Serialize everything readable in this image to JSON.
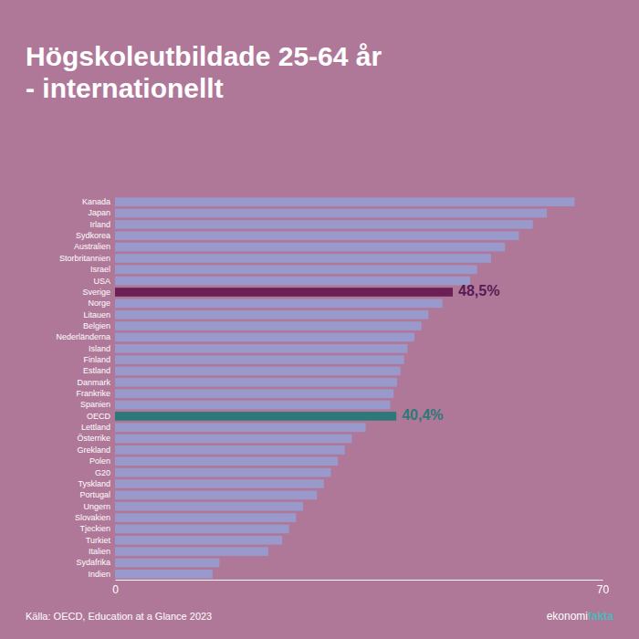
{
  "chart_data": {
    "type": "bar",
    "orientation": "horizontal",
    "title": "Högskoleutbildade 25-64 år\n- internationellt",
    "source": "Källa: OECD, Education at a Glance 2023",
    "logo": [
      {
        "text": "ekonomi",
        "color": "#ffffff"
      },
      {
        "text": "fakta",
        "color": "#4db8b8"
      }
    ],
    "background_color": "#b07898",
    "title_color": "#ffffff",
    "source_color": "#ffffff",
    "categories": [
      "Kanada",
      "Japan",
      "Irland",
      "Sydkorea",
      "Australien",
      "Storbritannien",
      "Israel",
      "USA",
      "Sverige",
      "Norge",
      "Litauen",
      "Belgien",
      "Nederländerna",
      "Island",
      "Finland",
      "Estland",
      "Danmark",
      "Frankrike",
      "Spanien",
      "OECD",
      "Lettland",
      "Österrike",
      "Grekland",
      "Polen",
      "G20",
      "Tyskland",
      "Portugal",
      "Ungern",
      "Slovakien",
      "Tjeckien",
      "Turkiet",
      "Italien",
      "Sydafrika",
      "Indien"
    ],
    "values": [
      66,
      62,
      60,
      58,
      56,
      54,
      52,
      51,
      48.5,
      47,
      45,
      44,
      43,
      42,
      41.5,
      41,
      40.5,
      40,
      39.5,
      40.4,
      36,
      34,
      33,
      32,
      31,
      30,
      29,
      27,
      26,
      25,
      24,
      22,
      15,
      14
    ],
    "colors": [
      "#9999cc",
      "#9999cc",
      "#9999cc",
      "#9999cc",
      "#9999cc",
      "#9999cc",
      "#9999cc",
      "#9999cc",
      "#6b2055",
      "#9999cc",
      "#9999cc",
      "#9999cc",
      "#9999cc",
      "#9999cc",
      "#9999cc",
      "#9999cc",
      "#9999cc",
      "#9999cc",
      "#9999cc",
      "#2d7878",
      "#9999cc",
      "#9999cc",
      "#9999cc",
      "#9999cc",
      "#9999cc",
      "#9999cc",
      "#9999cc",
      "#9999cc",
      "#9999cc",
      "#9999cc",
      "#9999cc",
      "#9999cc",
      "#9999cc",
      "#9999cc"
    ],
    "annotations": [
      {
        "text": "48,5%",
        "category": "Sverige",
        "color": "#5a1a55"
      },
      {
        "text": "40,4%",
        "category": "OECD",
        "color": "#2d7878"
      }
    ],
    "xlim": [
      0,
      70
    ],
    "xticks": [
      0,
      70
    ],
    "grid": false
  }
}
